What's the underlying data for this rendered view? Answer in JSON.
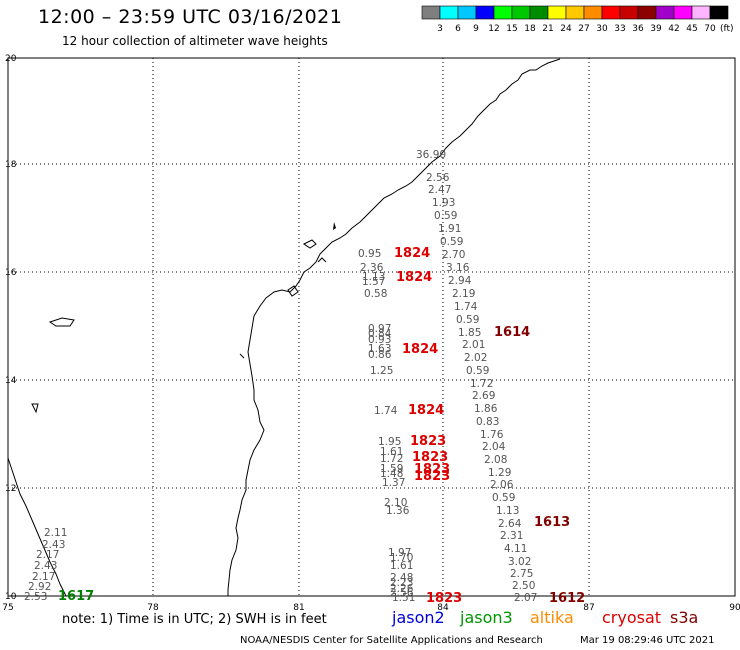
{
  "header": {
    "title": "12:00 – 23:59 UTC 03/16/2021",
    "subtitle": "12 hour collection of altimeter wave heights"
  },
  "legend": {
    "unit": "(ft)",
    "swatches": [
      {
        "label": "3",
        "color": "#7f7f7f"
      },
      {
        "label": "6",
        "color": "#00ffff"
      },
      {
        "label": "9",
        "color": "#00c8ff"
      },
      {
        "label": "12",
        "color": "#0000ff"
      },
      {
        "label": "15",
        "color": "#00ff00"
      },
      {
        "label": "18",
        "color": "#00c800"
      },
      {
        "label": "21",
        "color": "#008c00"
      },
      {
        "label": "24",
        "color": "#ffff00"
      },
      {
        "label": "27",
        "color": "#ffc800"
      },
      {
        "label": "30",
        "color": "#ff8c00"
      },
      {
        "label": "33",
        "color": "#ff0000"
      },
      {
        "label": "36",
        "color": "#c80000"
      },
      {
        "label": "39",
        "color": "#8c0000"
      },
      {
        "label": "42",
        "color": "#a000c8"
      },
      {
        "label": "45",
        "color": "#ff00ff"
      },
      {
        "label": "70",
        "color": "#ffb4ff"
      },
      {
        "label": "",
        "color": "#000000"
      }
    ]
  },
  "axes": {
    "x_ticks": [
      "75",
      "78",
      "81",
      "84",
      "87",
      "90"
    ],
    "y_ticks": [
      "10",
      "12",
      "14",
      "16",
      "18",
      "20"
    ]
  },
  "observations": [
    {
      "text": "36.90",
      "color": "#a00000"
    },
    {
      "text": "2.56"
    },
    {
      "text": "2.47"
    },
    {
      "text": "1.93"
    },
    {
      "text": "0.59"
    },
    {
      "text": "1.91"
    },
    {
      "text": "0.59"
    },
    {
      "text": "2.70"
    },
    {
      "text": "3.16",
      "color": "#00b4d2"
    },
    {
      "text": "2.94"
    },
    {
      "text": "2.19"
    },
    {
      "text": "1.74"
    },
    {
      "text": "0.59"
    },
    {
      "text": "1.85"
    },
    {
      "text": "2.01"
    },
    {
      "text": "2.02"
    },
    {
      "text": "0.59"
    },
    {
      "text": "1.72"
    },
    {
      "text": "2.69"
    },
    {
      "text": "1.86"
    },
    {
      "text": "0.83"
    },
    {
      "text": "1.76"
    },
    {
      "text": "2.04"
    },
    {
      "text": "2.08"
    },
    {
      "text": "1.29"
    },
    {
      "text": "2.06"
    },
    {
      "text": "0.59"
    },
    {
      "text": "1.13"
    },
    {
      "text": "2.64"
    },
    {
      "text": "2.31"
    },
    {
      "text": "4.11",
      "color": "#00b4d2"
    },
    {
      "text": "3.02",
      "color": "#00b4d2"
    },
    {
      "text": "2.75"
    },
    {
      "text": "2.50"
    },
    {
      "text": "2.07"
    },
    {
      "text": "0.95"
    },
    {
      "text": "2.36"
    },
    {
      "text": "1.13"
    },
    {
      "text": "1.57"
    },
    {
      "text": "0.58"
    },
    {
      "text": "0.97"
    },
    {
      "text": "0.84"
    },
    {
      "text": "0.93"
    },
    {
      "text": "1.63"
    },
    {
      "text": "0.86"
    },
    {
      "text": "1.25"
    },
    {
      "text": "1.74"
    },
    {
      "text": "1.95"
    },
    {
      "text": "1.61"
    },
    {
      "text": "1.72"
    },
    {
      "text": "1.59"
    },
    {
      "text": "1.48"
    },
    {
      "text": "1.37"
    },
    {
      "text": "2.10"
    },
    {
      "text": "1.36"
    },
    {
      "text": "1.97"
    },
    {
      "text": "1.70"
    },
    {
      "text": "1.61"
    },
    {
      "text": "2.48"
    },
    {
      "text": "2.23"
    },
    {
      "text": "2.26"
    },
    {
      "text": "2.56"
    },
    {
      "text": "1.51"
    },
    {
      "text": "2.11"
    },
    {
      "text": "2.43"
    },
    {
      "text": "2.17"
    },
    {
      "text": "2.43"
    },
    {
      "text": "2.17"
    },
    {
      "text": "2.92"
    },
    {
      "text": "2.53"
    }
  ],
  "passes": [
    {
      "text": "1824",
      "color": "#dc0000"
    },
    {
      "text": "1824",
      "color": "#dc0000"
    },
    {
      "text": "1614",
      "color": "#800000"
    },
    {
      "text": "1824",
      "color": "#dc0000"
    },
    {
      "text": "1824",
      "color": "#dc0000"
    },
    {
      "text": "1823",
      "color": "#dc0000"
    },
    {
      "text": "1823",
      "color": "#dc0000"
    },
    {
      "text": "1823",
      "color": "#dc0000"
    },
    {
      "text": "1823",
      "color": "#dc0000"
    },
    {
      "text": "1613",
      "color": "#800000"
    },
    {
      "text": "1823",
      "color": "#dc0000"
    },
    {
      "text": "1612",
      "color": "#800000"
    },
    {
      "text": "1617",
      "color": "#008000"
    }
  ],
  "footer": {
    "note": "note: 1) Time is in UTC; 2) SWH is in feet",
    "satellites": [
      {
        "name": "jason2",
        "color": "#0000dc"
      },
      {
        "name": "jason3",
        "color": "#009600"
      },
      {
        "name": "altika",
        "color": "#ff8c00"
      },
      {
        "name": "cryosat",
        "color": "#dc0000"
      },
      {
        "name": "s3a",
        "color": "#800000"
      }
    ],
    "credit": "NOAA/NESDIS Center for Satellite Applications and Research",
    "timestamp": "Mar 19 08:29:46 UTC 2021"
  }
}
